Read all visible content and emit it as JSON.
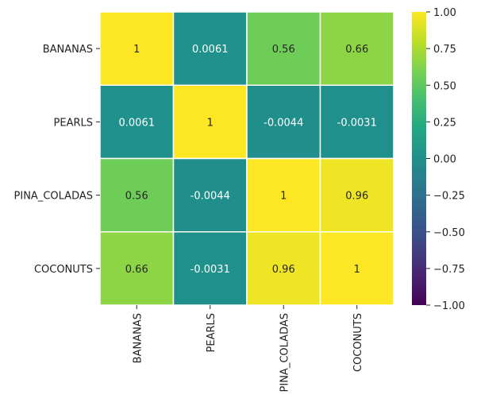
{
  "chart_data": {
    "type": "heatmap",
    "rows": [
      "BANANAS",
      "PEARLS",
      "PINA_COLADAS",
      "COCONUTS"
    ],
    "columns": [
      "BANANAS",
      "PEARLS",
      "PINA_COLADAS",
      "COCONUTS"
    ],
    "values": [
      [
        1,
        0.0061,
        0.56,
        0.66
      ],
      [
        0.0061,
        1,
        -0.0044,
        -0.0031
      ],
      [
        0.56,
        -0.0044,
        1,
        0.96
      ],
      [
        0.66,
        -0.0031,
        0.96,
        1
      ]
    ],
    "cell_labels": [
      [
        "1",
        "0.0061",
        "0.56",
        "0.66"
      ],
      [
        "0.0061",
        "1",
        "-0.0044",
        "-0.0031"
      ],
      [
        "0.56",
        "-0.0044",
        "1",
        "0.96"
      ],
      [
        "0.66",
        "-0.0031",
        "0.96",
        "1"
      ]
    ],
    "colormap": "viridis",
    "vmin": -1,
    "vmax": 1,
    "colorbar": {
      "ticks": [
        1,
        0.75,
        0.5,
        0.25,
        0,
        -0.25,
        -0.5,
        -0.75,
        -1
      ],
      "tick_labels": [
        "1.00",
        "0.75",
        "0.50",
        "0.25",
        "0.00",
        "−0.25",
        "−0.50",
        "−0.75",
        "−1.00"
      ],
      "placement": "right"
    },
    "cell_border_color": "#ffffff",
    "x_tick_rotation": "vertical"
  }
}
